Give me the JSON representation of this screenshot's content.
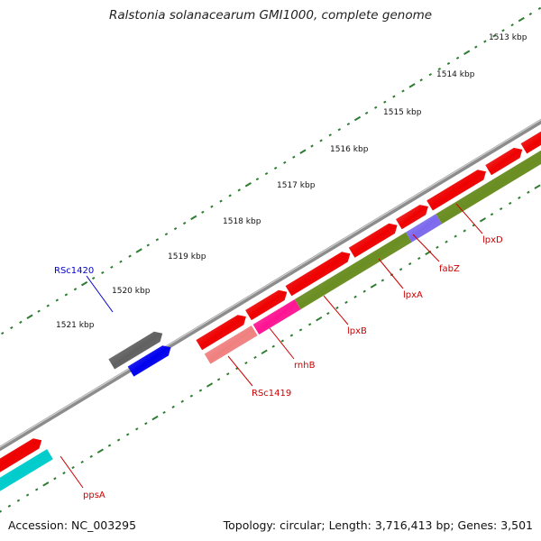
{
  "title": "Ralstonia solanacearum GMI1000, complete genome",
  "footer": {
    "accession": "Accession: NC_003295",
    "summary": "Topology: circular; Length: 3,716,413 bp; Genes: 3,501"
  },
  "scale": {
    "unit": "kbp",
    "labels": [
      "1513 kbp",
      "1514 kbp",
      "1515 kbp",
      "1516 kbp",
      "1517 kbp",
      "1518 kbp",
      "1519 kbp",
      "1520 kbp",
      "1521 kbp"
    ],
    "tick_color": "#2e7d32"
  },
  "colors": {
    "backbone": "#8c8c8c",
    "gene_forward": "#ee0000",
    "gene_reverse": "#0000ee",
    "pseudogene": "#606060",
    "cds_olive": "#6b8e23",
    "cds_magenta": "#ff1493",
    "cds_pink": "#f08080",
    "cds_purple": "#7b68ee",
    "cds_cyan": "#00cccc",
    "label_forward": "#cc0000",
    "label_reverse": "#0000cc"
  },
  "genes": [
    {
      "name": "ppsA",
      "color": "#cc0000"
    },
    {
      "name": "RSc1419",
      "color": "#cc0000"
    },
    {
      "name": "rnhB",
      "color": "#cc0000"
    },
    {
      "name": "lpxB",
      "color": "#cc0000"
    },
    {
      "name": "lpxA",
      "color": "#cc0000"
    },
    {
      "name": "fabZ",
      "color": "#cc0000"
    },
    {
      "name": "lpxD",
      "color": "#cc0000"
    },
    {
      "name": "RSc1420",
      "color": "#0000cc"
    }
  ]
}
